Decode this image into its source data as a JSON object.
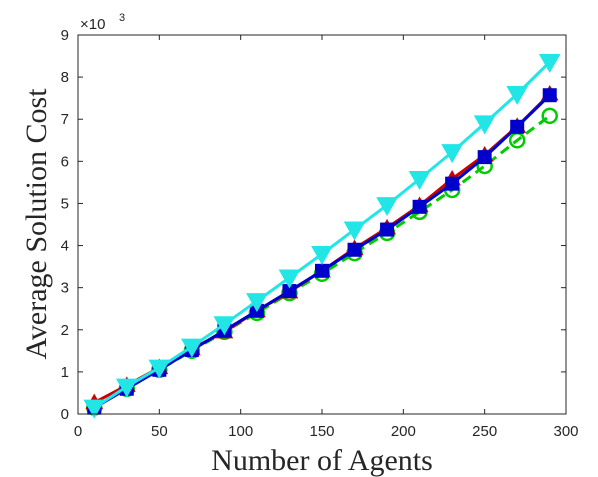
{
  "chart_data": {
    "type": "line",
    "title": "",
    "xlabel": "Number of Agents",
    "ylabel": "Average Solution Cost",
    "y_multiplier": "×10",
    "y_multiplier_exponent": "3",
    "xlim": [
      0,
      300
    ],
    "ylim": [
      0,
      9000
    ],
    "xticks": [
      0,
      50,
      100,
      150,
      200,
      250,
      300
    ],
    "yticks": [
      0,
      1000,
      2000,
      3000,
      4000,
      5000,
      6000,
      7000,
      8000,
      9000
    ],
    "ytick_labels": [
      "0",
      "1",
      "2",
      "3",
      "4",
      "5",
      "6",
      "7",
      "8",
      "9"
    ],
    "xtick_labels": [
      "0",
      "50",
      "100",
      "150",
      "200",
      "250",
      "300"
    ],
    "grid": false,
    "legend": "none",
    "x": [
      10,
      30,
      50,
      70,
      90,
      110,
      130,
      150,
      170,
      190,
      210,
      230,
      250,
      270,
      290
    ],
    "series": [
      {
        "color": "#00cc00",
        "marker": "circle-open",
        "line": "dashed",
        "values": [
          150,
          600,
          1050,
          1500,
          1950,
          2400,
          2870,
          3330,
          3820,
          4300,
          4800,
          5320,
          5890,
          6500,
          7080
        ]
      },
      {
        "color": "#cc0000",
        "marker": "triangle-up",
        "line": "solid",
        "values": [
          270,
          680,
          1100,
          1550,
          1950,
          2450,
          2900,
          3400,
          3930,
          4420,
          4950,
          5580,
          6150,
          6830,
          7600
        ]
      },
      {
        "color": "#0000cc",
        "marker": "square",
        "line": "solid",
        "values": [
          150,
          600,
          1050,
          1520,
          1980,
          2450,
          2920,
          3400,
          3900,
          4380,
          4920,
          5470,
          6100,
          6820,
          7570
        ]
      },
      {
        "color": "#22e6e6",
        "marker": "triangle-down",
        "line": "solid",
        "values": [
          150,
          650,
          1100,
          1600,
          2130,
          2680,
          3240,
          3800,
          4380,
          4960,
          5580,
          6220,
          6900,
          7600,
          8360
        ]
      }
    ]
  }
}
